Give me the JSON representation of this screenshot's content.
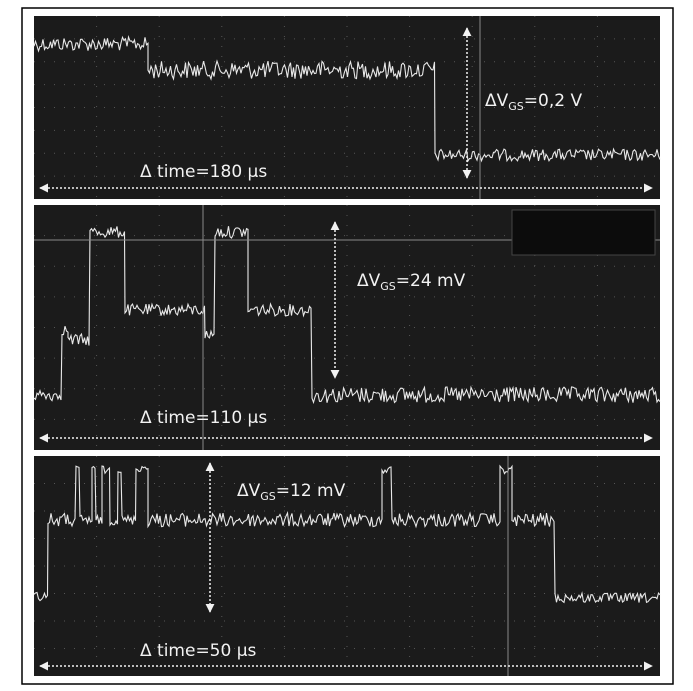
{
  "panels": [
    {
      "delta_v": {
        "prefix": "ΔV",
        "sub": "GS",
        "suffix": "=0,2 V"
      },
      "delta_time": "Δ time=180 µs"
    },
    {
      "delta_v": {
        "prefix": "ΔV",
        "sub": "GS",
        "suffix": "=24 mV"
      },
      "delta_time": "Δ time=110 µs"
    },
    {
      "delta_v": {
        "prefix": "ΔV",
        "sub": "GS",
        "suffix": "=12 mV"
      },
      "delta_time": "Δ time=50 µs"
    }
  ]
}
